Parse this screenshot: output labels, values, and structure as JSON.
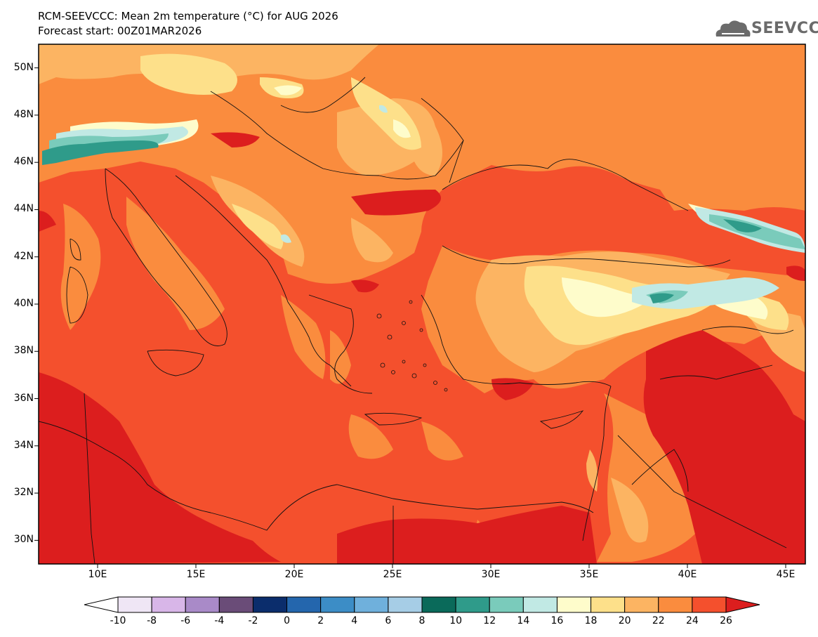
{
  "header": {
    "title": "RCM-SEEVCCC: Mean 2m temperature (°C) for AUG 2026",
    "subtitle": "Forecast start: 00Z01MAR2026",
    "logo_text": "SEEVCCC",
    "logo_icon": "cloud-icon",
    "logo_color": "#6b6b6b"
  },
  "map": {
    "lon_range": [
      7,
      46
    ],
    "lat_range": [
      29,
      51
    ],
    "lat_ticks": [
      {
        "value": 50,
        "label": "50N"
      },
      {
        "value": 48,
        "label": "48N"
      },
      {
        "value": 46,
        "label": "46N"
      },
      {
        "value": 44,
        "label": "44N"
      },
      {
        "value": 42,
        "label": "42N"
      },
      {
        "value": 40,
        "label": "40N"
      },
      {
        "value": 38,
        "label": "38N"
      },
      {
        "value": 36,
        "label": "36N"
      },
      {
        "value": 34,
        "label": "34N"
      },
      {
        "value": 32,
        "label": "32N"
      },
      {
        "value": 30,
        "label": "30N"
      }
    ],
    "lon_ticks": [
      {
        "value": 10,
        "label": "10E"
      },
      {
        "value": 15,
        "label": "15E"
      },
      {
        "value": 20,
        "label": "20E"
      },
      {
        "value": 25,
        "label": "25E"
      },
      {
        "value": 30,
        "label": "30E"
      },
      {
        "value": 35,
        "label": "35E"
      },
      {
        "value": 40,
        "label": "40E"
      },
      {
        "value": 45,
        "label": "45E"
      }
    ],
    "base_fill": "#f4502d"
  },
  "colorbar": {
    "labels": [
      "-10",
      "-8",
      "-6",
      "-4",
      "-2",
      "0",
      "2",
      "4",
      "6",
      "8",
      "10",
      "12",
      "14",
      "16",
      "18",
      "20",
      "22",
      "24",
      "26"
    ],
    "low_extend_color": "#ffffff",
    "high_extend_color": "#dc1e1e",
    "colors": [
      "#efe6f5",
      "#d8b6e8",
      "#a98ac8",
      "#6a4c78",
      "#0b2d6c",
      "#2466ad",
      "#3c8dc6",
      "#6fb0dc",
      "#a6cde6",
      "#0a6a5a",
      "#2f9b8a",
      "#7acbbb",
      "#c1e9e4",
      "#fefccb",
      "#fde08a",
      "#fcb462",
      "#fa8c3e",
      "#f4502d"
    ]
  }
}
